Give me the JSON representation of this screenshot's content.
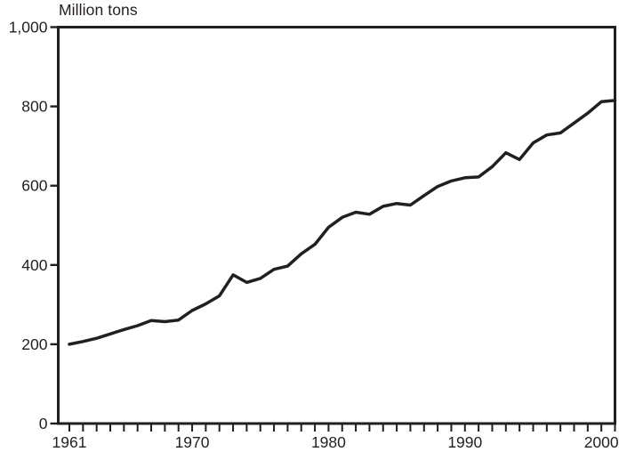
{
  "page": {
    "background": "#ffffff",
    "ink_color": "#231f20"
  },
  "chart_data": {
    "type": "line",
    "title": "Million tons",
    "xlabel": "",
    "ylabel": "Million tons",
    "xlim": [
      1961,
      2001
    ],
    "ylim": [
      0,
      1000
    ],
    "grid": false,
    "legend": "none",
    "line_color": "#231f20",
    "line_width": 3.5,
    "y_ticks": [
      0,
      200,
      400,
      600,
      800,
      1000
    ],
    "y_tick_labels": [
      "0",
      "200",
      "400",
      "600",
      "800",
      "1,000"
    ],
    "x_minor_tick_every": 1,
    "x_labeled_ticks": [
      {
        "year": 1961,
        "label": "1961"
      },
      {
        "year": 1970,
        "label": "1970"
      },
      {
        "year": 1980,
        "label": "1980"
      },
      {
        "year": 1990,
        "label": "1990"
      },
      {
        "year": 2000,
        "label": "2000"
      }
    ],
    "x": [
      1961,
      1962,
      1963,
      1964,
      1965,
      1966,
      1967,
      1968,
      1969,
      1970,
      1971,
      1972,
      1973,
      1974,
      1975,
      1976,
      1977,
      1978,
      1979,
      1980,
      1981,
      1982,
      1983,
      1984,
      1985,
      1986,
      1987,
      1988,
      1989,
      1990,
      1991,
      1992,
      1993,
      1994,
      1995,
      1996,
      1997,
      1998,
      1999,
      2000,
      2001
    ],
    "values": [
      200,
      207,
      215,
      226,
      237,
      247,
      260,
      257,
      261,
      285,
      302,
      322,
      375,
      356,
      366,
      389,
      397,
      428,
      452,
      495,
      520,
      533,
      528,
      548,
      555,
      551,
      575,
      598,
      612,
      620,
      622,
      648,
      683,
      666,
      708,
      728,
      733,
      758,
      783,
      812,
      815
    ]
  }
}
